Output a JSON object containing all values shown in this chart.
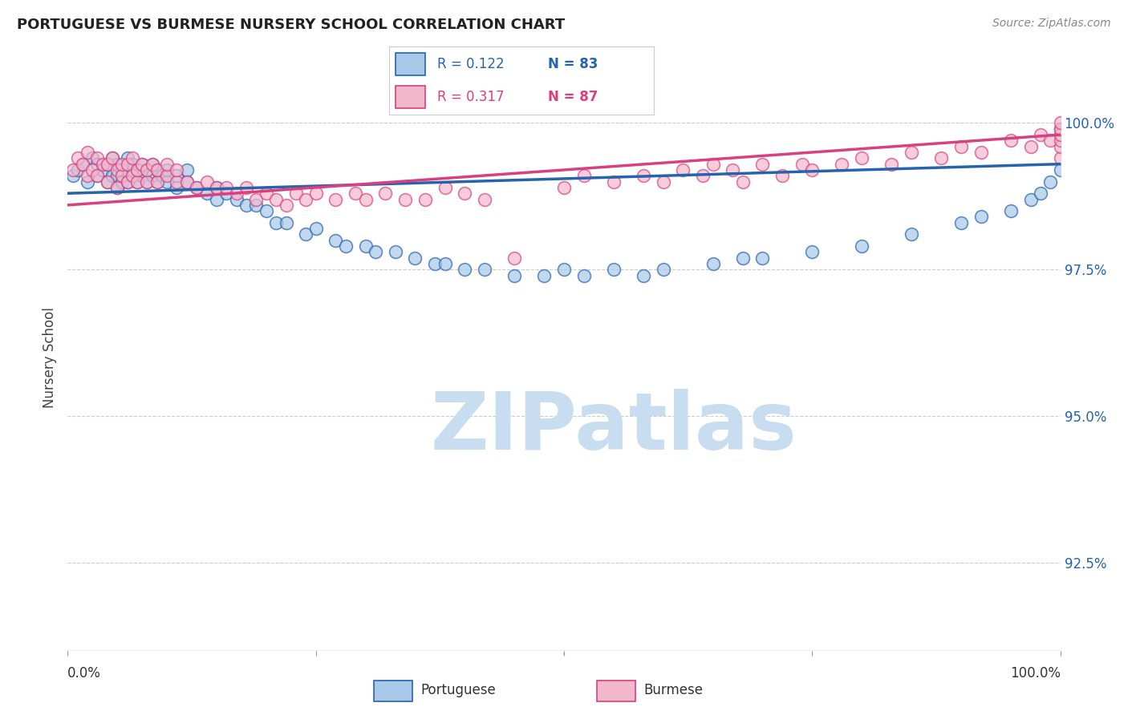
{
  "title": "PORTUGUESE VS BURMESE NURSERY SCHOOL CORRELATION CHART",
  "source": "Source: ZipAtlas.com",
  "ylabel": "Nursery School",
  "legend_r_blue": "0.122",
  "legend_n_blue": "83",
  "legend_r_pink": "0.317",
  "legend_n_pink": "87",
  "blue_color": "#a8c8e8",
  "pink_color": "#f4b8cc",
  "line_blue_color": "#2563ae",
  "line_pink_color": "#d94080",
  "watermark": "ZIPatlas",
  "watermark_color": "#c8ddf0",
  "ytick_labels": [
    "92.5%",
    "95.0%",
    "97.5%",
    "100.0%"
  ],
  "ytick_values": [
    0.925,
    0.95,
    0.975,
    1.0
  ],
  "xlim": [
    0.0,
    1.0
  ],
  "ylim": [
    0.91,
    1.01
  ],
  "blue_x": [
    0.005,
    0.01,
    0.015,
    0.02,
    0.025,
    0.03,
    0.03,
    0.035,
    0.04,
    0.04,
    0.045,
    0.045,
    0.05,
    0.05,
    0.05,
    0.055,
    0.055,
    0.06,
    0.06,
    0.06,
    0.065,
    0.065,
    0.07,
    0.07,
    0.075,
    0.075,
    0.08,
    0.08,
    0.085,
    0.085,
    0.09,
    0.09,
    0.095,
    0.1,
    0.1,
    0.11,
    0.11,
    0.12,
    0.12,
    0.13,
    0.14,
    0.15,
    0.15,
    0.16,
    0.17,
    0.18,
    0.19,
    0.2,
    0.21,
    0.22,
    0.24,
    0.25,
    0.27,
    0.28,
    0.3,
    0.31,
    0.33,
    0.35,
    0.37,
    0.38,
    0.4,
    0.42,
    0.45,
    0.48,
    0.5,
    0.52,
    0.55,
    0.58,
    0.6,
    0.65,
    0.68,
    0.7,
    0.75,
    0.8,
    0.85,
    0.9,
    0.92,
    0.95,
    0.97,
    0.98,
    0.99,
    1.0,
    1.0
  ],
  "blue_y": [
    0.991,
    0.992,
    0.993,
    0.99,
    0.994,
    0.991,
    0.993,
    0.992,
    0.99,
    0.993,
    0.991,
    0.994,
    0.989,
    0.991,
    0.993,
    0.99,
    0.992,
    0.99,
    0.992,
    0.994,
    0.991,
    0.993,
    0.99,
    0.992,
    0.991,
    0.993,
    0.99,
    0.992,
    0.991,
    0.993,
    0.99,
    0.992,
    0.991,
    0.99,
    0.992,
    0.989,
    0.991,
    0.99,
    0.992,
    0.989,
    0.988,
    0.987,
    0.989,
    0.988,
    0.987,
    0.986,
    0.986,
    0.985,
    0.983,
    0.983,
    0.981,
    0.982,
    0.98,
    0.979,
    0.979,
    0.978,
    0.978,
    0.977,
    0.976,
    0.976,
    0.975,
    0.975,
    0.974,
    0.974,
    0.975,
    0.974,
    0.975,
    0.974,
    0.975,
    0.976,
    0.977,
    0.977,
    0.978,
    0.979,
    0.981,
    0.983,
    0.984,
    0.985,
    0.987,
    0.988,
    0.99,
    0.992,
    0.999
  ],
  "pink_x": [
    0.005,
    0.01,
    0.015,
    0.02,
    0.02,
    0.025,
    0.03,
    0.03,
    0.035,
    0.04,
    0.04,
    0.045,
    0.05,
    0.05,
    0.055,
    0.055,
    0.06,
    0.06,
    0.065,
    0.065,
    0.07,
    0.07,
    0.075,
    0.08,
    0.08,
    0.085,
    0.09,
    0.09,
    0.1,
    0.1,
    0.11,
    0.11,
    0.12,
    0.13,
    0.14,
    0.15,
    0.16,
    0.17,
    0.18,
    0.19,
    0.2,
    0.21,
    0.22,
    0.23,
    0.24,
    0.25,
    0.27,
    0.29,
    0.3,
    0.32,
    0.34,
    0.36,
    0.38,
    0.4,
    0.42,
    0.45,
    0.5,
    0.52,
    0.55,
    0.58,
    0.6,
    0.62,
    0.64,
    0.65,
    0.67,
    0.68,
    0.7,
    0.72,
    0.74,
    0.75,
    0.78,
    0.8,
    0.83,
    0.85,
    0.88,
    0.9,
    0.92,
    0.95,
    0.97,
    0.98,
    0.99,
    1.0,
    1.0,
    1.0,
    1.0,
    1.0,
    1.0
  ],
  "pink_y": [
    0.992,
    0.994,
    0.993,
    0.991,
    0.995,
    0.992,
    0.991,
    0.994,
    0.993,
    0.99,
    0.993,
    0.994,
    0.989,
    0.992,
    0.991,
    0.993,
    0.99,
    0.993,
    0.991,
    0.994,
    0.99,
    0.992,
    0.993,
    0.99,
    0.992,
    0.993,
    0.99,
    0.992,
    0.991,
    0.993,
    0.99,
    0.992,
    0.99,
    0.989,
    0.99,
    0.989,
    0.989,
    0.988,
    0.989,
    0.987,
    0.988,
    0.987,
    0.986,
    0.988,
    0.987,
    0.988,
    0.987,
    0.988,
    0.987,
    0.988,
    0.987,
    0.987,
    0.989,
    0.988,
    0.987,
    0.977,
    0.989,
    0.991,
    0.99,
    0.991,
    0.99,
    0.992,
    0.991,
    0.993,
    0.992,
    0.99,
    0.993,
    0.991,
    0.993,
    0.992,
    0.993,
    0.994,
    0.993,
    0.995,
    0.994,
    0.996,
    0.995,
    0.997,
    0.996,
    0.998,
    0.997,
    0.994,
    0.996,
    0.997,
    0.998,
    0.999,
    1.0
  ]
}
